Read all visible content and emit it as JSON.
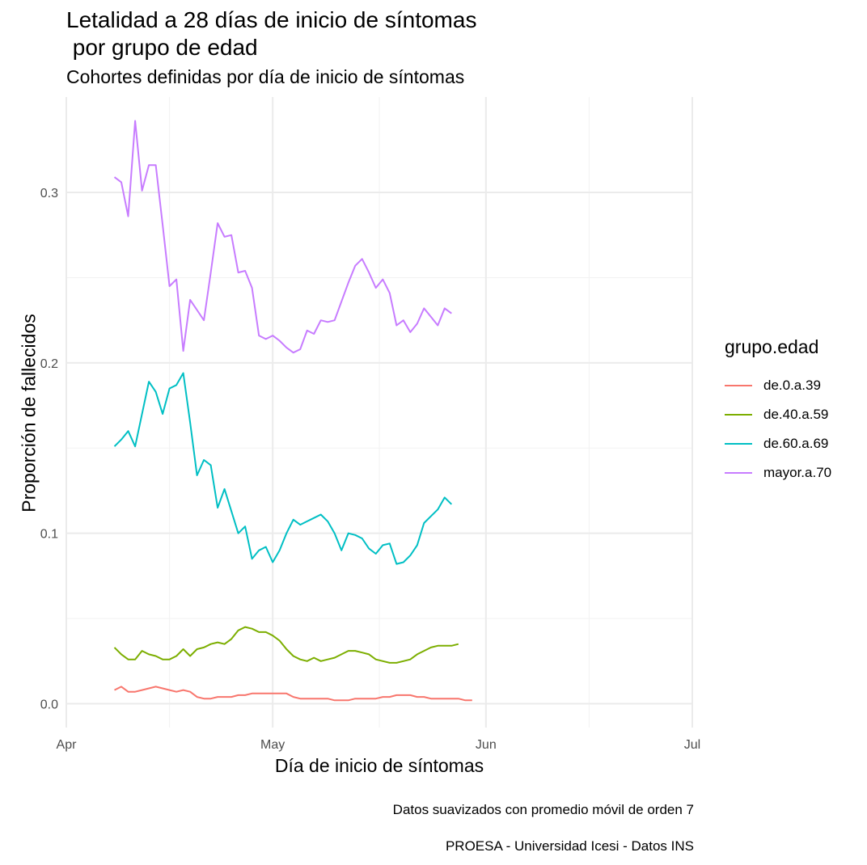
{
  "chart_data": {
    "type": "line",
    "title": "Letalidad a 28 días de inicio de síntomas\n por grupo de edad",
    "subtitle": "Cohortes definidas por día de inicio de síntomas",
    "xlabel": "Día de inicio de síntomas",
    "ylabel": "Proporción de fallecidos",
    "x_ticks": [
      {
        "label": "Apr",
        "day": 0
      },
      {
        "label": "May",
        "day": 30
      },
      {
        "label": "Jun",
        "day": 61
      },
      {
        "label": "Jul",
        "day": 91
      }
    ],
    "y_ticks": [
      0.0,
      0.1,
      0.2,
      0.3
    ],
    "y_tick_labels": [
      "0.0",
      "0.1",
      "0.2",
      "0.3"
    ],
    "xlim_days": [
      0,
      91
    ],
    "ylim": [
      -0.014,
      0.356
    ],
    "x_start_day": 7,
    "legend_title": "grupo.edad",
    "legend_position": "right",
    "caption1": "Datos suavizados con promedio móvil de orden 7",
    "caption2": "PROESA - Universidad Icesi - Datos INS",
    "series": [
      {
        "name": "de.0.a.39",
        "color": "#F8766D",
        "values": [
          0.008,
          0.01,
          0.007,
          0.007,
          0.008,
          0.009,
          0.01,
          0.009,
          0.008,
          0.007,
          0.008,
          0.007,
          0.004,
          0.003,
          0.003,
          0.004,
          0.004,
          0.004,
          0.005,
          0.005,
          0.006,
          0.006,
          0.006,
          0.006,
          0.006,
          0.006,
          0.004,
          0.003,
          0.003,
          0.003,
          0.003,
          0.003,
          0.002,
          0.002,
          0.002,
          0.003,
          0.003,
          0.003,
          0.003,
          0.004,
          0.004,
          0.005,
          0.005,
          0.005,
          0.004,
          0.004,
          0.003,
          0.003,
          0.003,
          0.003,
          0.003,
          0.002,
          0.002
        ]
      },
      {
        "name": "de.40.a.59",
        "color": "#7CAE00",
        "values": [
          0.033,
          0.029,
          0.026,
          0.026,
          0.031,
          0.029,
          0.028,
          0.026,
          0.026,
          0.028,
          0.032,
          0.028,
          0.032,
          0.033,
          0.035,
          0.036,
          0.035,
          0.038,
          0.043,
          0.045,
          0.044,
          0.042,
          0.042,
          0.04,
          0.037,
          0.032,
          0.028,
          0.026,
          0.025,
          0.027,
          0.025,
          0.026,
          0.027,
          0.029,
          0.031,
          0.031,
          0.03,
          0.029,
          0.026,
          0.025,
          0.024,
          0.024,
          0.025,
          0.026,
          0.029,
          0.031,
          0.033,
          0.034,
          0.034,
          0.034,
          0.035
        ]
      },
      {
        "name": "de.60.a.69",
        "color": "#00BFC4",
        "values": [
          0.151,
          0.155,
          0.16,
          0.151,
          0.17,
          0.189,
          0.183,
          0.17,
          0.185,
          0.187,
          0.194,
          0.165,
          0.134,
          0.143,
          0.14,
          0.115,
          0.126,
          0.113,
          0.1,
          0.104,
          0.085,
          0.09,
          0.092,
          0.083,
          0.09,
          0.1,
          0.108,
          0.105,
          0.107,
          0.109,
          0.111,
          0.107,
          0.1,
          0.09,
          0.1,
          0.099,
          0.097,
          0.091,
          0.088,
          0.093,
          0.094,
          0.082,
          0.083,
          0.087,
          0.093,
          0.106,
          0.11,
          0.114,
          0.121,
          0.117
        ]
      },
      {
        "name": "mayor.a.70",
        "color": "#C77CFF",
        "values": [
          0.309,
          0.306,
          0.286,
          0.342,
          0.301,
          0.316,
          0.316,
          0.281,
          0.245,
          0.249,
          0.207,
          0.237,
          0.231,
          0.225,
          0.253,
          0.282,
          0.274,
          0.275,
          0.253,
          0.254,
          0.244,
          0.216,
          0.214,
          0.216,
          0.213,
          0.209,
          0.206,
          0.208,
          0.219,
          0.217,
          0.225,
          0.224,
          0.225,
          0.236,
          0.247,
          0.257,
          0.261,
          0.253,
          0.244,
          0.249,
          0.241,
          0.222,
          0.225,
          0.218,
          0.223,
          0.232,
          0.227,
          0.222,
          0.232,
          0.229
        ]
      }
    ]
  }
}
